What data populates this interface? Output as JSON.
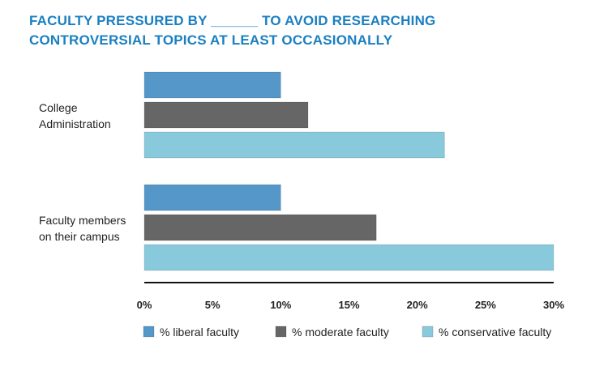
{
  "chart_data": {
    "type": "bar",
    "orientation": "horizontal",
    "title": "FACULTY PRESSURED BY ______ TO AVOID RESEARCHING CONTROVERSIAL TOPICS AT LEAST OCCASIONALLY",
    "title_lines": [
      "FACULTY PRESSURED BY ______ TO AVOID RESEARCHING",
      "CONTROVERSIAL TOPICS AT LEAST OCCASIONALLY"
    ],
    "categories": [
      {
        "lines": [
          "College",
          "Administration"
        ]
      },
      {
        "lines": [
          "Faculty members",
          "on their campus"
        ]
      }
    ],
    "series": [
      {
        "name": "% liberal faculty",
        "color": "#5597c8",
        "values": [
          10,
          10
        ]
      },
      {
        "name": "% moderate faculty",
        "color": "#666666",
        "values": [
          12,
          17
        ]
      },
      {
        "name": "% conservative faculty",
        "color": "#88c9dc",
        "values": [
          22,
          30
        ]
      }
    ],
    "xlim": [
      0,
      30
    ],
    "xticks": [
      "0%",
      "5%",
      "10%",
      "15%",
      "20%",
      "25%",
      "30%"
    ],
    "xtick_values": [
      0,
      5,
      10,
      15,
      20,
      25,
      30
    ],
    "xlabel": "",
    "ylabel": "",
    "grid": false,
    "legend_position": "bottom"
  }
}
